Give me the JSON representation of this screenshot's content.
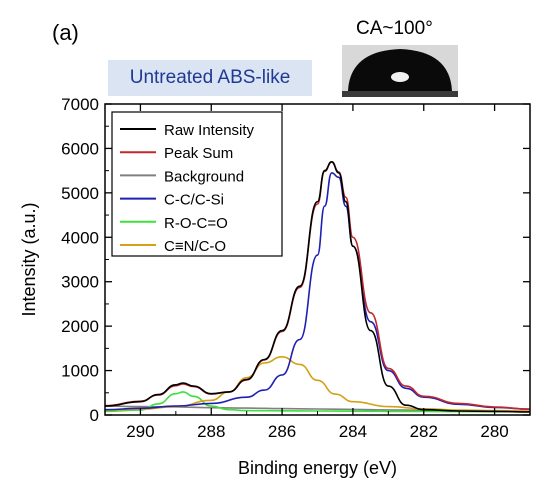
{
  "panel_label": "(a)",
  "sample_label": "Untreated ABS-like",
  "contact_angle_label": "CA~100°",
  "chart_data": {
    "type": "line",
    "xlabel": "Binding energy (eV)",
    "ylabel": "Intensity (a.u.)",
    "xlim": [
      291,
      279
    ],
    "ylim": [
      0,
      7000
    ],
    "x_reversed": true,
    "x_ticks": [
      290,
      288,
      286,
      284,
      282,
      280
    ],
    "y_ticks": [
      0,
      1000,
      2000,
      3000,
      4000,
      5000,
      6000,
      7000
    ],
    "legend_position": "top-left",
    "series": [
      {
        "name": "Raw Intensity",
        "color": "#000000",
        "x": [
          291,
          290,
          289.5,
          289,
          288.8,
          288.5,
          288,
          287.5,
          287,
          286.5,
          286,
          285.5,
          285,
          284.8,
          284.6,
          284.4,
          284.2,
          284,
          283.5,
          283,
          282.5,
          282,
          281,
          280,
          279
        ],
        "y": [
          200,
          300,
          460,
          680,
          720,
          650,
          480,
          520,
          800,
          1250,
          1900,
          2900,
          4800,
          5500,
          5700,
          5450,
          4800,
          3800,
          1900,
          650,
          220,
          120,
          90,
          80,
          70
        ]
      },
      {
        "name": "Peak Sum",
        "color": "#c0282d",
        "x": [
          291,
          290,
          289.5,
          289,
          288.8,
          288.5,
          288,
          287.5,
          287,
          286.5,
          286,
          285.5,
          285,
          284.8,
          284.6,
          284.4,
          284.2,
          284,
          283.5,
          283,
          282.5,
          282,
          281,
          280,
          279
        ],
        "y": [
          210,
          310,
          450,
          660,
          700,
          640,
          470,
          520,
          790,
          1240,
          1880,
          2870,
          4750,
          5480,
          5700,
          5470,
          4900,
          4000,
          2300,
          1050,
          650,
          420,
          260,
          180,
          130
        ]
      },
      {
        "name": "Background",
        "color": "#808080",
        "x": [
          291,
          290,
          289,
          288,
          287,
          286,
          285,
          284,
          283,
          282,
          281,
          280,
          279
        ],
        "y": [
          200,
          190,
          180,
          165,
          155,
          145,
          135,
          125,
          115,
          105,
          95,
          85,
          75
        ]
      },
      {
        "name": "C-C/C-Si",
        "color": "#1f1fb5",
        "x": [
          291,
          290,
          289,
          288,
          287,
          286.5,
          286,
          285.5,
          285,
          284.8,
          284.6,
          284.4,
          284.2,
          284,
          283.5,
          283,
          282.5,
          282,
          281,
          280,
          279
        ],
        "y": [
          120,
          150,
          200,
          260,
          400,
          560,
          900,
          1700,
          3600,
          4700,
          5450,
          5350,
          4700,
          3800,
          2100,
          1000,
          600,
          400,
          240,
          170,
          130
        ]
      },
      {
        "name": "R-O-C=O",
        "color": "#3de03d",
        "x": [
          291,
          290,
          289.5,
          289,
          288.8,
          288.5,
          288,
          287.5,
          287,
          286,
          285,
          284,
          283,
          282,
          281,
          280,
          279
        ],
        "y": [
          80,
          110,
          250,
          480,
          520,
          420,
          200,
          120,
          100,
          95,
          90,
          85,
          80,
          78,
          76,
          74,
          72
        ]
      },
      {
        "name": "C≡N/C-O",
        "color": "#d4a017",
        "x": [
          291,
          290,
          289,
          288,
          287.5,
          287,
          286.5,
          286,
          285.5,
          285,
          284.5,
          284,
          283,
          282,
          281,
          280,
          279
        ],
        "y": [
          110,
          130,
          190,
          330,
          520,
          840,
          1170,
          1310,
          1140,
          780,
          470,
          300,
          190,
          140,
          110,
          100,
          90
        ]
      }
    ]
  }
}
